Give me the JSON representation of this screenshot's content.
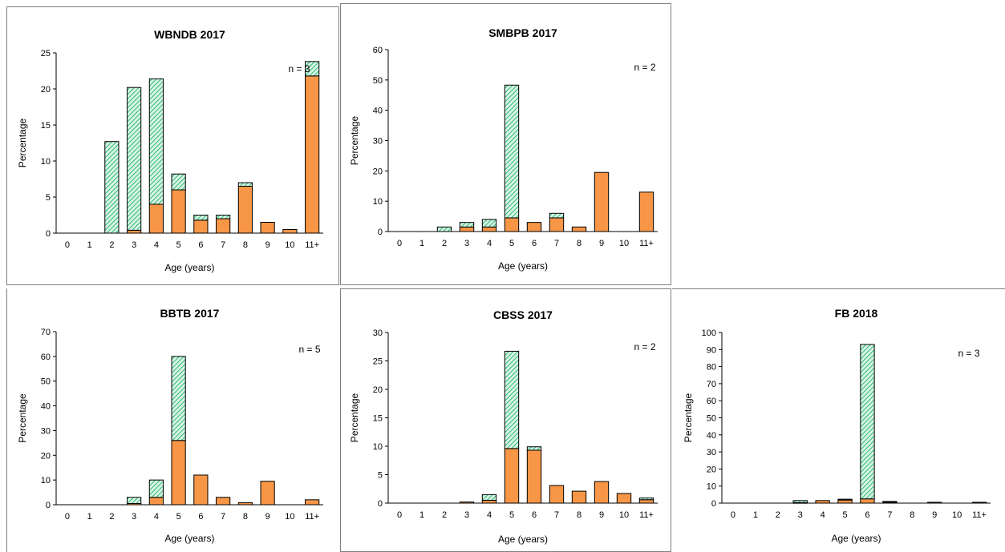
{
  "colors": {
    "bottom_fill": "#f79646",
    "top_fill": "#d8f2e6",
    "top_hatch": "#00b050",
    "axis": "#000000",
    "frame": "#7f7f7f"
  },
  "chart_data": [
    {
      "type": "bar",
      "stacked": true,
      "title": "WBNDB 2017",
      "xlabel": "Age (years)",
      "ylabel": "Percentage",
      "annotation": "n = 3",
      "ylim": [
        0,
        25
      ],
      "yticks": [
        "0",
        "5",
        "10",
        "15",
        "20",
        "25"
      ],
      "categories": [
        "0",
        "1",
        "2",
        "3",
        "4",
        "5",
        "6",
        "7",
        "8",
        "9",
        "10",
        "11+"
      ],
      "series": [
        {
          "values": [
            0,
            0,
            0,
            0.4,
            4.0,
            6.0,
            1.8,
            2.0,
            6.5,
            1.5,
            0.5,
            21.8
          ]
        },
        {
          "values": [
            0,
            0,
            12.7,
            19.8,
            17.4,
            2.2,
            0.7,
            0.5,
            0.5,
            0,
            0,
            2.0
          ]
        }
      ]
    },
    {
      "type": "bar",
      "stacked": true,
      "title": "SMBPB 2017",
      "xlabel": "Age (years)",
      "ylabel": "Percentage",
      "annotation": "n = 2",
      "ylim": [
        0,
        60
      ],
      "yticks": [
        "0",
        "10",
        "20",
        "30",
        "40",
        "50",
        "60"
      ],
      "categories": [
        "0",
        "1",
        "2",
        "3",
        "4",
        "5",
        "6",
        "7",
        "8",
        "9",
        "10",
        "11+"
      ],
      "series": [
        {
          "values": [
            0,
            0,
            0,
            1.5,
            1.5,
            4.5,
            3.0,
            4.5,
            1.5,
            19.5,
            0,
            13.0
          ]
        },
        {
          "values": [
            0,
            0,
            1.5,
            1.5,
            2.5,
            43.8,
            0,
            1.5,
            0,
            0,
            0,
            0
          ]
        }
      ]
    },
    {
      "type": "bar",
      "stacked": true,
      "title": "BBTB 2017",
      "xlabel": "Age (years)",
      "ylabel": "Percentage",
      "annotation": "n = 5",
      "ylim": [
        0,
        70
      ],
      "yticks": [
        "0",
        "10",
        "20",
        "30",
        "40",
        "50",
        "60",
        "70"
      ],
      "categories": [
        "0",
        "1",
        "2",
        "3",
        "4",
        "5",
        "6",
        "7",
        "8",
        "9",
        "10",
        "11+"
      ],
      "series": [
        {
          "values": [
            0,
            0,
            0,
            0.5,
            3.0,
            26.0,
            12.0,
            3.0,
            0.8,
            9.5,
            0,
            2.0
          ]
        },
        {
          "values": [
            0,
            0,
            0,
            2.5,
            7.0,
            34.0,
            0,
            0,
            0,
            0,
            0,
            0
          ]
        }
      ]
    },
    {
      "type": "bar",
      "stacked": true,
      "title": "CBSS 2017",
      "xlabel": "Age (years)",
      "ylabel": "Percentage",
      "annotation": "n = 2",
      "ylim": [
        0,
        30
      ],
      "yticks": [
        "0",
        "5",
        "10",
        "15",
        "20",
        "25",
        "30"
      ],
      "categories": [
        "0",
        "1",
        "2",
        "3",
        "4",
        "5",
        "6",
        "7",
        "8",
        "9",
        "10",
        "11+"
      ],
      "series": [
        {
          "values": [
            0,
            0,
            0,
            0.2,
            0.5,
            9.6,
            9.3,
            3.1,
            2.1,
            3.8,
            1.7,
            0.6
          ]
        },
        {
          "values": [
            0,
            0,
            0,
            0,
            1.0,
            17.1,
            0.6,
            0,
            0,
            0,
            0,
            0.3
          ]
        }
      ]
    },
    {
      "type": "bar",
      "stacked": true,
      "title": "FB 2018",
      "xlabel": "Age (years)",
      "ylabel": "Percentage",
      "annotation": "n = 3",
      "ylim": [
        0,
        100
      ],
      "yticks": [
        "0",
        "10",
        "20",
        "30",
        "40",
        "50",
        "60",
        "70",
        "80",
        "90",
        "100"
      ],
      "categories": [
        "0",
        "1",
        "2",
        "3",
        "4",
        "5",
        "6",
        "7",
        "8",
        "9",
        "10",
        "11+"
      ],
      "series": [
        {
          "values": [
            0,
            0,
            0,
            0.3,
            1.5,
            1.8,
            2.5,
            0.5,
            0,
            0.5,
            0,
            0.5
          ]
        },
        {
          "values": [
            0,
            0,
            0,
            1.2,
            0,
            0.5,
            90.5,
            0.5,
            0,
            0,
            0,
            0
          ]
        }
      ]
    }
  ]
}
